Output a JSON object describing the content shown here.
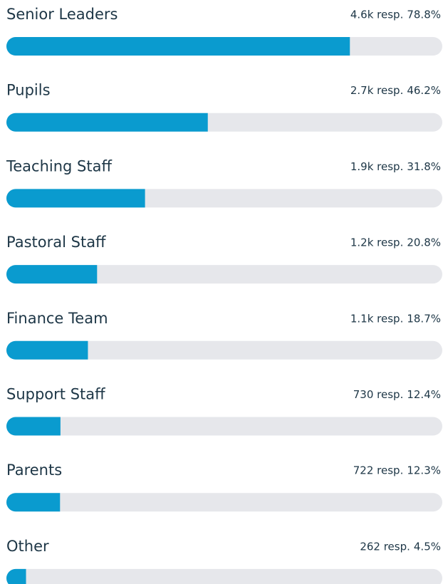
{
  "chart_data": {
    "type": "bar",
    "orientation": "horizontal",
    "categories": [
      "Senior Leaders",
      "Pupils",
      "Teaching Staff",
      "Pastoral Staff",
      "Finance Team",
      "Support Staff",
      "Parents",
      "Other"
    ],
    "values": [
      78.8,
      46.2,
      31.8,
      20.8,
      18.7,
      12.4,
      12.3,
      4.5
    ],
    "value_labels": [
      "78.8%",
      "46.2%",
      "31.8%",
      "20.8%",
      "18.7%",
      "12.4%",
      "12.3%",
      "4.5%"
    ],
    "counts": [
      4600,
      2700,
      1900,
      1200,
      1100,
      730,
      722,
      262
    ],
    "count_labels": [
      "4.6k resp.",
      "2.7k resp.",
      "1.9k resp.",
      "1.2k resp.",
      "1.1k resp.",
      "730 resp.",
      "722 resp.",
      "262 resp."
    ],
    "xlim": [
      0,
      100
    ],
    "color": "#0a9bcf",
    "track_color": "#e6e7eb"
  }
}
